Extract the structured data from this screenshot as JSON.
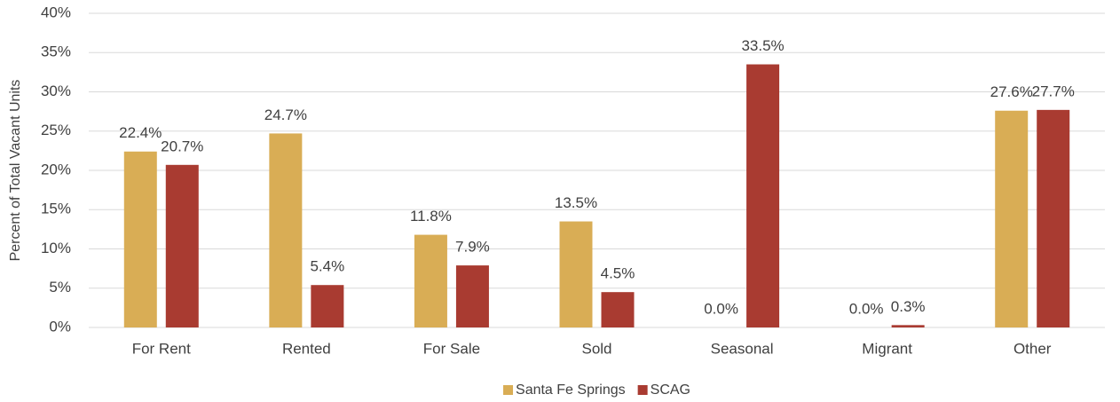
{
  "chart_data": {
    "type": "bar",
    "y_axis_label": "Percent of Total Vacant Units",
    "categories": [
      "For Rent",
      "Rented",
      "For Sale",
      "Sold",
      "Seasonal",
      "Migrant",
      "Other"
    ],
    "series": [
      {
        "name": "Santa Fe Springs",
        "color": "#d9ad55",
        "values": [
          22.4,
          24.7,
          11.8,
          13.5,
          0.0,
          0.0,
          27.6
        ],
        "value_labels": [
          "22.4%",
          "24.7%",
          "11.8%",
          "13.5%",
          "0.0%",
          "0.0%",
          "27.6%"
        ]
      },
      {
        "name": "SCAG",
        "color": "#a93b31",
        "values": [
          20.7,
          5.4,
          7.9,
          4.5,
          33.5,
          0.3,
          27.7
        ],
        "value_labels": [
          "20.7%",
          "5.4%",
          "7.9%",
          "4.5%",
          "33.5%",
          "0.3%",
          "27.7%"
        ]
      }
    ],
    "ylim": [
      0,
      40
    ],
    "yticks": [
      {
        "value": 0,
        "label": "0%"
      },
      {
        "value": 5,
        "label": "5%"
      },
      {
        "value": 10,
        "label": "10%"
      },
      {
        "value": 15,
        "label": "15%"
      },
      {
        "value": 20,
        "label": "20%"
      },
      {
        "value": 25,
        "label": "25%"
      },
      {
        "value": 30,
        "label": "30%"
      },
      {
        "value": 35,
        "label": "35%"
      },
      {
        "value": 40,
        "label": "40%"
      }
    ],
    "grid": true,
    "legend": "bottom"
  }
}
